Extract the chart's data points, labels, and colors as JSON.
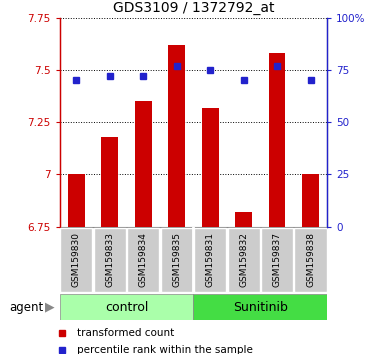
{
  "title": "GDS3109 / 1372792_at",
  "samples": [
    "GSM159830",
    "GSM159833",
    "GSM159834",
    "GSM159835",
    "GSM159831",
    "GSM159832",
    "GSM159837",
    "GSM159838"
  ],
  "bar_values": [
    7.0,
    7.18,
    7.35,
    7.62,
    7.32,
    6.82,
    7.58,
    7.0
  ],
  "percentile_values": [
    70,
    72,
    72,
    77,
    75,
    70,
    77,
    70
  ],
  "bar_bottom": 6.75,
  "ylim_left": [
    6.75,
    7.75
  ],
  "ylim_right": [
    0,
    100
  ],
  "yticks_left": [
    6.75,
    7.0,
    7.25,
    7.5,
    7.75
  ],
  "ytick_labels_left": [
    "6.75",
    "7",
    "7.25",
    "7.5",
    "7.75"
  ],
  "yticks_right": [
    0,
    25,
    50,
    75,
    100
  ],
  "ytick_labels_right": [
    "0",
    "25",
    "50",
    "75",
    "100%"
  ],
  "bar_color": "#cc0000",
  "percentile_color": "#2222cc",
  "group1_label": "control",
  "group2_label": "Sunitinib",
  "group1_indices": [
    0,
    1,
    2,
    3
  ],
  "group2_indices": [
    4,
    5,
    6,
    7
  ],
  "group1_bg": "#aaffaa",
  "group2_bg": "#44dd44",
  "agent_label": "agent",
  "legend1": "transformed count",
  "legend2": "percentile rank within the sample",
  "left_axis_color": "#cc0000",
  "right_axis_color": "#2222cc",
  "grid_color": "#000000",
  "bar_width": 0.5,
  "sample_bg": "#cccccc",
  "title_fontsize": 10,
  "tick_fontsize": 7.5,
  "sample_fontsize": 6.5,
  "group_fontsize": 9,
  "legend_fontsize": 7.5
}
